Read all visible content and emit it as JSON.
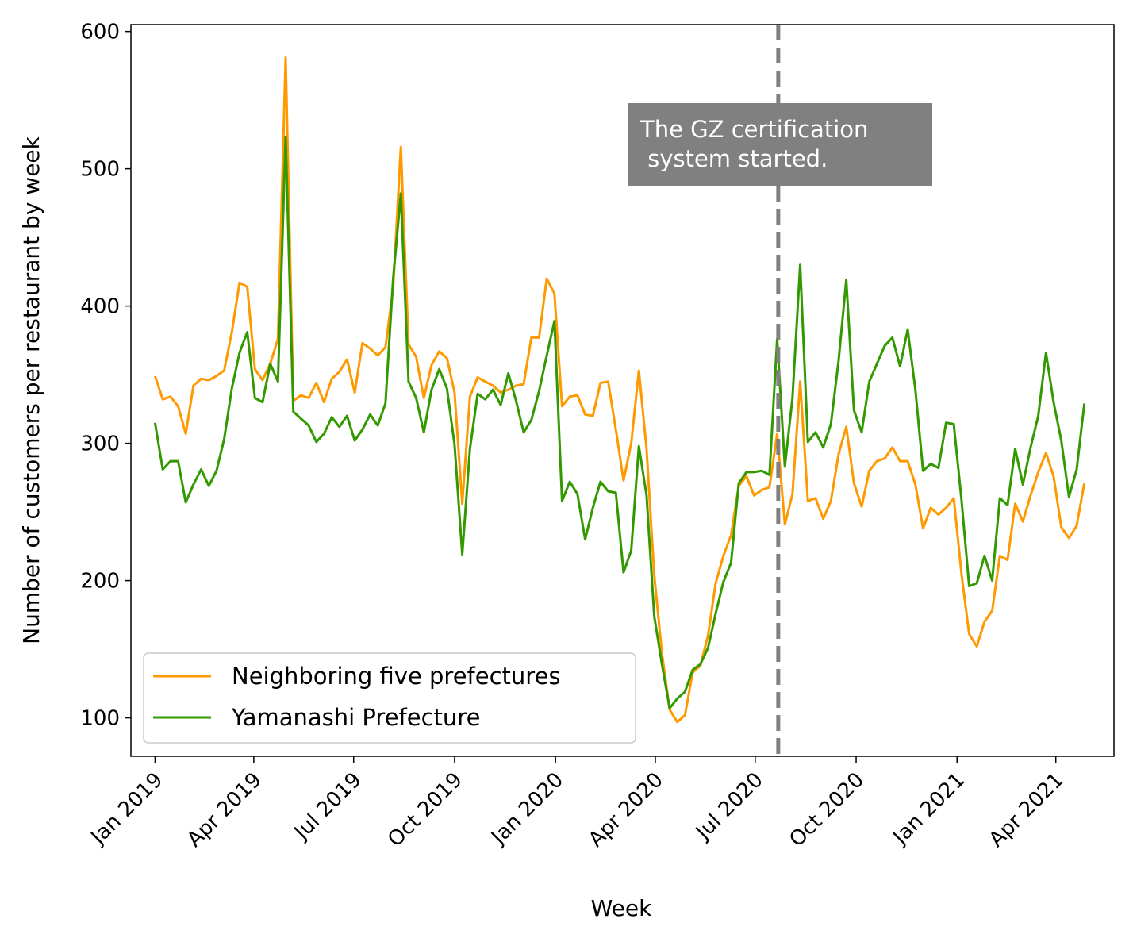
{
  "chart_data": {
    "type": "line",
    "xlabel": "Week",
    "ylabel": "Number of customers per restaurant by week",
    "x_axis_type": "date",
    "xlim": [
      "2018-12-10",
      "2021-05-24"
    ],
    "ylim": [
      72,
      605
    ],
    "y_ticks": [
      100,
      200,
      300,
      400,
      500,
      600
    ],
    "x_ticks": [
      {
        "date": "2019-01-01",
        "label": "Jan 2019"
      },
      {
        "date": "2019-04-01",
        "label": "Apr 2019"
      },
      {
        "date": "2019-07-01",
        "label": "Jul 2019"
      },
      {
        "date": "2019-10-01",
        "label": "Oct 2019"
      },
      {
        "date": "2020-01-01",
        "label": "Jan 2020"
      },
      {
        "date": "2020-04-01",
        "label": "Apr 2020"
      },
      {
        "date": "2020-07-01",
        "label": "Jul 2020"
      },
      {
        "date": "2020-10-01",
        "label": "Oct 2020"
      },
      {
        "date": "2021-01-01",
        "label": "Jan 2021"
      },
      {
        "date": "2021-04-01",
        "label": "Apr 2021"
      }
    ],
    "x_tick_rotation": 45,
    "grid": false,
    "legend_position": "bottom-left",
    "x_start": "2019-01-01",
    "x_step_days": 7,
    "series": [
      {
        "name": "Neighboring five prefectures",
        "color": "#ff9900",
        "values": [
          349,
          332,
          334,
          327,
          307,
          342,
          347,
          346,
          349,
          353,
          381,
          417,
          414,
          354,
          346,
          358,
          376,
          581,
          331,
          335,
          333,
          344,
          330,
          347,
          352,
          361,
          337,
          373,
          369,
          364,
          370,
          413,
          516,
          372,
          363,
          333,
          357,
          367,
          362,
          337,
          256,
          334,
          348,
          345,
          342,
          337,
          339,
          342,
          343,
          377,
          377,
          420,
          409,
          327,
          334,
          335,
          321,
          320,
          344,
          345,
          310,
          273,
          300,
          353,
          296,
          204,
          147,
          106,
          97,
          102,
          133,
          138,
          160,
          198,
          218,
          233,
          269,
          276,
          262,
          266,
          268,
          307,
          241,
          263,
          345,
          258,
          260,
          245,
          258,
          292,
          312,
          271,
          254,
          280,
          287,
          289,
          297,
          287,
          287,
          270,
          238,
          253,
          248,
          253,
          260,
          205,
          161,
          152,
          170,
          178,
          218,
          215,
          256,
          243,
          262,
          279,
          293,
          276,
          239,
          231,
          240,
          271
        ]
      },
      {
        "name": "Yamanashi Prefecture",
        "color": "#339900",
        "values": [
          315,
          281,
          287,
          287,
          257,
          270,
          281,
          269,
          280,
          303,
          340,
          366,
          381,
          333,
          330,
          358,
          345,
          523,
          323,
          318,
          313,
          301,
          307,
          319,
          312,
          320,
          302,
          310,
          321,
          313,
          329,
          420,
          482,
          345,
          333,
          308,
          339,
          354,
          340,
          299,
          219,
          296,
          336,
          332,
          339,
          328,
          351,
          331,
          308,
          317,
          338,
          364,
          389,
          258,
          272,
          263,
          230,
          253,
          272,
          265,
          264,
          206,
          222,
          298,
          262,
          174,
          139,
          107,
          114,
          119,
          135,
          139,
          151,
          176,
          199,
          213,
          271,
          279,
          279,
          280,
          277,
          376,
          283,
          333,
          430,
          301,
          308,
          297,
          314,
          360,
          419,
          324,
          308,
          345,
          358,
          371,
          377,
          356,
          383,
          339,
          280,
          285,
          282,
          315,
          314,
          259,
          196,
          198,
          218,
          200,
          260,
          255,
          296,
          270,
          297,
          320,
          366,
          330,
          302,
          261,
          281,
          329
        ]
      }
    ],
    "annotation": {
      "text_lines": [
        "The GZ certification",
        " system started."
      ],
      "box_color": "#808080",
      "text_color": "#ffffff"
    },
    "vline": {
      "date": "2020-07-22",
      "style": "dashed",
      "color": "#808080"
    }
  }
}
